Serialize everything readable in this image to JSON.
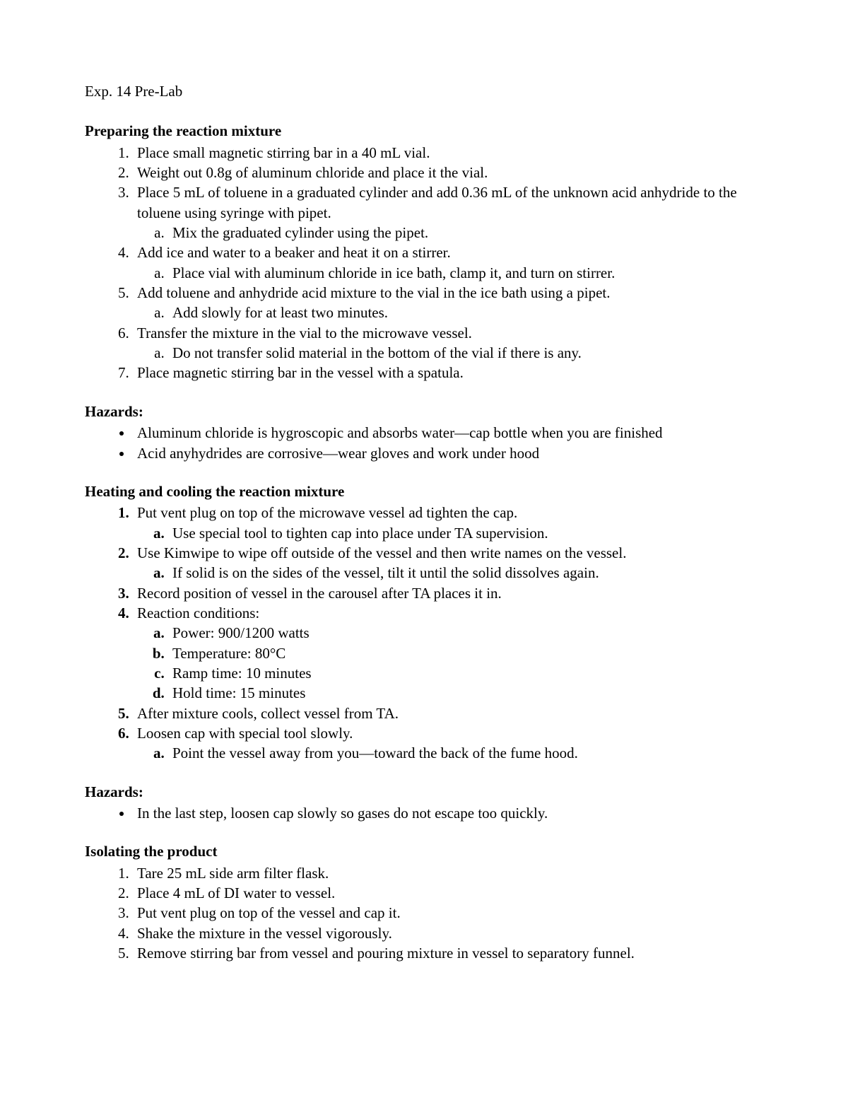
{
  "title": "Exp. 14 Pre-Lab",
  "sections": [
    {
      "heading": "Preparing the reaction mixture",
      "list_bold": false,
      "items": [
        {
          "text": "Place small magnetic stirring bar in a 40 mL vial."
        },
        {
          "text": "Weight out 0.8g of aluminum chloride and place it the vial."
        },
        {
          "text": "Place 5 mL of toluene in a graduated cylinder and add 0.36 mL of the unknown acid anhydride to the toluene using syringe with pipet.",
          "sub": [
            {
              "text": "Mix the graduated cylinder using the pipet."
            }
          ]
        },
        {
          "text": "Add ice and water to a beaker and heat it on a stirrer.",
          "sub": [
            {
              "text": "Place vial with aluminum chloride in ice bath, clamp it, and turn on stirrer."
            }
          ]
        },
        {
          "text": "Add toluene and anhydride acid mixture to the vial in the ice bath using a pipet.",
          "sub": [
            {
              "text": "Add slowly for at least two minutes."
            }
          ]
        },
        {
          "text": "Transfer the mixture in the vial to the microwave vessel.",
          "sub": [
            {
              "text": "Do not transfer solid material in the bottom of the vial if there is any."
            }
          ]
        },
        {
          "text": "Place magnetic stirring bar in the vessel with a spatula."
        }
      ]
    },
    {
      "heading": "Hazards:",
      "bullets": [
        {
          "text": "Aluminum chloride is hygroscopic and absorbs water—cap bottle when you are finished"
        },
        {
          "text": "Acid anyhydrides are corrosive—wear gloves and work under hood"
        }
      ]
    },
    {
      "heading": "Heating and cooling the reaction mixture",
      "list_bold": true,
      "items": [
        {
          "text": "Put vent plug on top of the microwave vessel ad tighten the cap.",
          "sub": [
            {
              "text": "Use special tool to tighten cap into place under TA supervision."
            }
          ]
        },
        {
          "text": "Use Kimwipe to wipe off outside of the vessel and then write names on the vessel.",
          "sub": [
            {
              "text": "If solid is on the sides of the vessel, tilt it until the solid dissolves again."
            }
          ]
        },
        {
          "text": "Record position of vessel in the carousel after TA places it in."
        },
        {
          "text": "Reaction conditions:",
          "sub": [
            {
              "text": "Power: 900/1200 watts"
            },
            {
              "text": "Temperature: 80°C"
            },
            {
              "text": "Ramp time: 10 minutes"
            },
            {
              "text": "Hold time: 15 minutes"
            }
          ]
        },
        {
          "text": "After mixture cools, collect vessel from TA."
        },
        {
          "text": "Loosen cap with special tool slowly.",
          "sub": [
            {
              "text": "Point the vessel away from you—toward the back of the fume hood."
            }
          ]
        }
      ]
    },
    {
      "heading": "Hazards:",
      "bullets": [
        {
          "text": "In the last step, loosen cap slowly so gases do not escape too quickly."
        }
      ]
    },
    {
      "heading": "Isolating the product",
      "list_bold": false,
      "items": [
        {
          "text": "Tare 25 mL side arm filter flask."
        },
        {
          "text": "Place 4 mL of DI water to vessel."
        },
        {
          "text": "Put vent plug on top of the vessel and cap it."
        },
        {
          "text": "Shake the mixture in the vessel vigorously."
        },
        {
          "text": "Remove stirring bar from vessel and pouring mixture in vessel to separatory funnel."
        }
      ]
    }
  ]
}
